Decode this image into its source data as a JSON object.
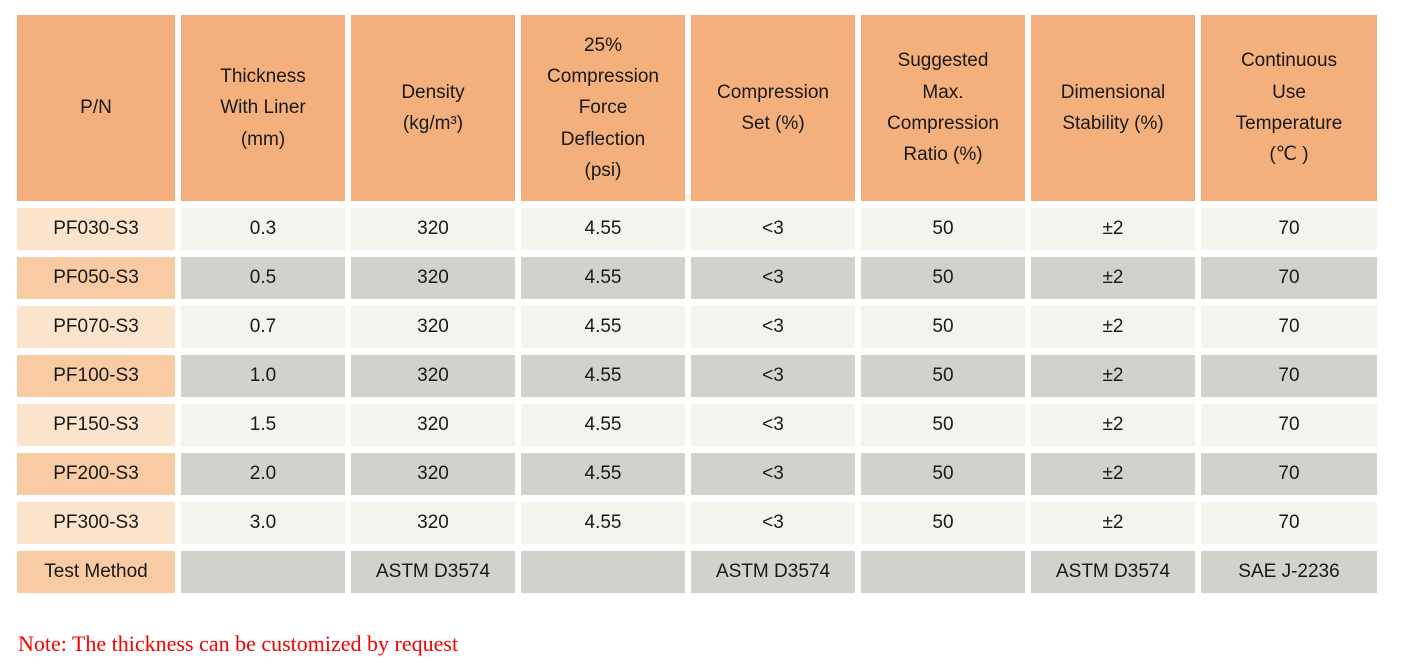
{
  "table": {
    "columns": [
      {
        "label": "P/N"
      },
      {
        "label": "Thickness\nWith Liner\n(mm)"
      },
      {
        "label": "Density\n(kg/m³)"
      },
      {
        "label": "25%\nCompression\nForce\nDeflection\n(psi)"
      },
      {
        "label": "Compression\nSet (%)"
      },
      {
        "label": "Suggested\nMax.\nCompression\nRatio (%)"
      },
      {
        "label": "Dimensional\nStability (%)"
      },
      {
        "label": "Continuous\nUse\nTemperature\n(℃ )"
      }
    ],
    "rows": [
      {
        "pn": "PF030-S3",
        "values": [
          "0.3",
          "320",
          "4.55",
          "<3",
          "50",
          "±2",
          "70"
        ]
      },
      {
        "pn": "PF050-S3",
        "values": [
          "0.5",
          "320",
          "4.55",
          "<3",
          "50",
          "±2",
          "70"
        ]
      },
      {
        "pn": "PF070-S3",
        "values": [
          "0.7",
          "320",
          "4.55",
          "<3",
          "50",
          "±2",
          "70"
        ]
      },
      {
        "pn": "PF100-S3",
        "values": [
          "1.0",
          "320",
          "4.55",
          "<3",
          "50",
          "±2",
          "70"
        ]
      },
      {
        "pn": "PF150-S3",
        "values": [
          "1.5",
          "320",
          "4.55",
          "<3",
          "50",
          "±2",
          "70"
        ]
      },
      {
        "pn": "PF200-S3",
        "values": [
          "2.0",
          "320",
          "4.55",
          "<3",
          "50",
          "±2",
          "70"
        ]
      },
      {
        "pn": "PF300-S3",
        "values": [
          "3.0",
          "320",
          "4.55",
          "<3",
          "50",
          "±2",
          "70"
        ]
      },
      {
        "pn": "Test Method",
        "values": [
          "",
          "ASTM D3574",
          "",
          "ASTM D3574",
          "",
          "ASTM D3574",
          "SAE J-2236"
        ]
      }
    ]
  },
  "note": "Note: The thickness can be customized by request",
  "colors": {
    "header_bg": "#f3b07c",
    "row_light_pn_bg": "#fce4cc",
    "row_light_value_bg": "#f4f4ef",
    "row_dark_pn_bg": "#f8cba4",
    "row_dark_value_bg": "#d2d2cc",
    "note_text": "#f40000",
    "table_text": "#191919"
  }
}
